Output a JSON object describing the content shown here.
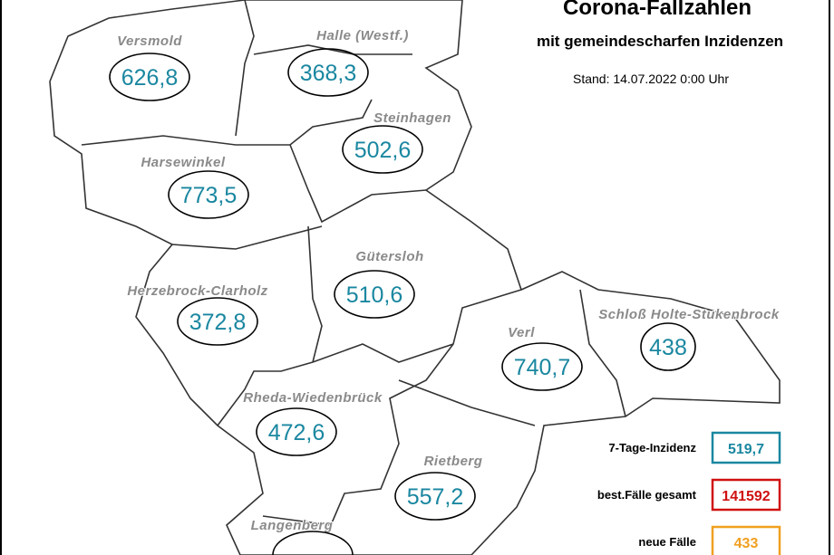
{
  "header": {
    "title": "Corona-Fallzahlen",
    "subtitle": "mit gemeindescharfen Inzidenzen",
    "stand": "Stand: 14.07.2022 0:00 Uhr"
  },
  "regions": [
    {
      "name": "Versmold",
      "value": "626,8"
    },
    {
      "name": "Halle (Westf.)",
      "value": "368,3"
    },
    {
      "name": "Steinhagen",
      "value": "502,6"
    },
    {
      "name": "Harsewinkel",
      "value": "773,5"
    },
    {
      "name": "Gütersloh",
      "value": "510,6"
    },
    {
      "name": "Herzebrock-Clarholz",
      "value": "372,8"
    },
    {
      "name": "Verl",
      "value": "740,7"
    },
    {
      "name": "Schloß Holte-Stukenbrock",
      "value": "438"
    },
    {
      "name": "Rheda-Wiedenbrück",
      "value": "472,6"
    },
    {
      "name": "Rietberg",
      "value": "557,2"
    },
    {
      "name": "Langenberg"
    }
  ],
  "legend": [
    {
      "label": "7-Tage-Inzidenz",
      "value": "519,7"
    },
    {
      "label": "best.Fälle gesamt",
      "value": "141592"
    },
    {
      "label": "neue Fälle",
      "value": "433"
    }
  ]
}
